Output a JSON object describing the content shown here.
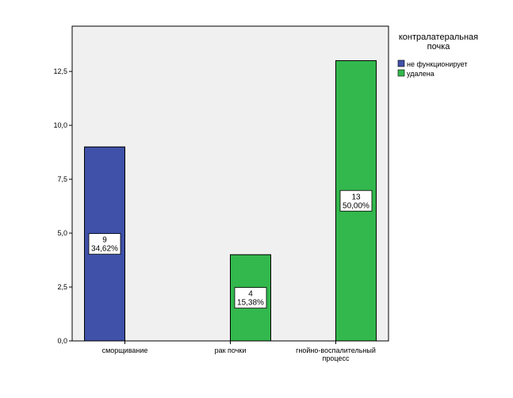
{
  "chart_data": {
    "type": "bar",
    "categories": [
      "сморщивание",
      "рак почки",
      "гнойно-воспалительный процесс"
    ],
    "category_lines": [
      [
        "сморщивание"
      ],
      [
        "рак почки"
      ],
      [
        "гнойно-воспалительный",
        "процесс"
      ]
    ],
    "series": [
      {
        "name": "не функционирует",
        "color": "#3f51a8",
        "values": [
          9,
          null,
          null
        ]
      },
      {
        "name": "удалена",
        "color": "#33b84d",
        "values": [
          null,
          4,
          13
        ]
      }
    ],
    "data_labels": [
      {
        "category": 0,
        "series": 0,
        "value": "9",
        "percent": "34,62%"
      },
      {
        "category": 1,
        "series": 1,
        "value": "4",
        "percent": "15,38%"
      },
      {
        "category": 2,
        "series": 1,
        "value": "13",
        "percent": "50,00%"
      }
    ],
    "ylim": [
      0,
      14.6
    ],
    "yticks": [
      0,
      2.5,
      5,
      7.5,
      10,
      12.5
    ],
    "ytick_labels": [
      "0,0",
      "2,5",
      "5,0",
      "7,5",
      "10,0",
      "12,5"
    ],
    "legend": {
      "title_lines": [
        "контралатеральная",
        "почка"
      ],
      "placement": "right"
    },
    "plot_background": "#f0f0f0",
    "grid": false
  }
}
